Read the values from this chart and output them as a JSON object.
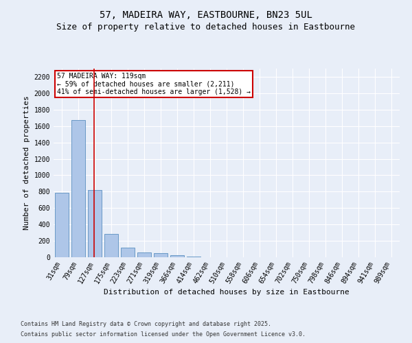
{
  "title_line1": "57, MADEIRA WAY, EASTBOURNE, BN23 5UL",
  "title_line2": "Size of property relative to detached houses in Eastbourne",
  "xlabel": "Distribution of detached houses by size in Eastbourne",
  "ylabel": "Number of detached properties",
  "categories": [
    "31sqm",
    "79sqm",
    "127sqm",
    "175sqm",
    "223sqm",
    "271sqm",
    "319sqm",
    "366sqm",
    "414sqm",
    "462sqm",
    "510sqm",
    "558sqm",
    "606sqm",
    "654sqm",
    "702sqm",
    "750sqm",
    "798sqm",
    "846sqm",
    "894sqm",
    "941sqm",
    "989sqm"
  ],
  "values": [
    790,
    1670,
    820,
    285,
    115,
    55,
    50,
    25,
    5,
    0,
    0,
    0,
    0,
    0,
    0,
    0,
    0,
    0,
    0,
    0,
    0
  ],
  "bar_color": "#aec6e8",
  "bar_edge_color": "#5a8fc0",
  "vline_x": 1.95,
  "vline_color": "#cc0000",
  "annotation_line1": "57 MADEIRA WAY: 119sqm",
  "annotation_line2": "← 59% of detached houses are smaller (2,211)",
  "annotation_line3": "41% of semi-detached houses are larger (1,528) →",
  "annotation_box_color": "#cc0000",
  "ylim": [
    0,
    2300
  ],
  "yticks": [
    0,
    200,
    400,
    600,
    800,
    1000,
    1200,
    1400,
    1600,
    1800,
    2000,
    2200
  ],
  "footer_line1": "Contains HM Land Registry data © Crown copyright and database right 2025.",
  "footer_line2": "Contains public sector information licensed under the Open Government Licence v3.0.",
  "background_color": "#e8eef8",
  "plot_bg_color": "#e8eef8",
  "grid_color": "#ffffff",
  "title_fontsize": 10,
  "subtitle_fontsize": 9,
  "axis_label_fontsize": 8,
  "tick_fontsize": 7,
  "annotation_fontsize": 7,
  "footer_fontsize": 6
}
